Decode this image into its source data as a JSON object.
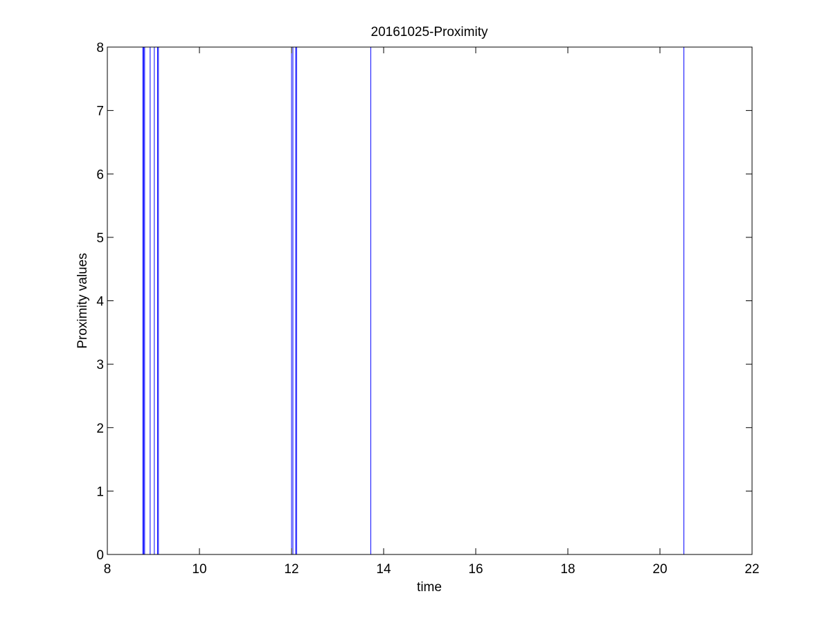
{
  "chart_data": {
    "type": "line",
    "title": "20161025-Proximity",
    "xlabel": "time",
    "ylabel": "Proximity values",
    "xlim": [
      8,
      22
    ],
    "ylim": [
      0,
      8
    ],
    "xticks": [
      "8",
      "10",
      "12",
      "14",
      "16",
      "18",
      "20",
      "22"
    ],
    "yticks": [
      "0",
      "1",
      "2",
      "3",
      "4",
      "5",
      "6",
      "7",
      "8"
    ],
    "grid": false,
    "legend": "none",
    "series": [
      {
        "color": "#0000ff",
        "segments": [
          {
            "x": [
              8.77,
              8.77
            ],
            "y": [
              0,
              8
            ]
          },
          {
            "x": [
              8.79,
              8.79
            ],
            "y": [
              0,
              8
            ]
          },
          {
            "x": [
              8.81,
              8.81
            ],
            "y": [
              0,
              8
            ]
          },
          {
            "x": [
              8.93,
              8.93
            ],
            "y": [
              0,
              8
            ]
          },
          {
            "x": [
              9.02,
              9.02
            ],
            "y": [
              0,
              8
            ]
          },
          {
            "x": [
              9.09,
              9.09
            ],
            "y": [
              0,
              8
            ]
          },
          {
            "x": [
              9.11,
              9.11
            ],
            "y": [
              0,
              8
            ]
          },
          {
            "x": [
              12.0,
              12.0
            ],
            "y": [
              0,
              8
            ]
          },
          {
            "x": [
              12.03,
              12.03
            ],
            "y": [
              0,
              8
            ]
          },
          {
            "x": [
              12.09,
              12.09
            ],
            "y": [
              0,
              8
            ]
          },
          {
            "x": [
              12.11,
              12.11
            ],
            "y": [
              0,
              8
            ]
          },
          {
            "x": [
              13.72,
              13.72
            ],
            "y": [
              0,
              8
            ]
          },
          {
            "x": [
              20.52,
              20.52
            ],
            "y": [
              0,
              8
            ]
          }
        ]
      }
    ]
  }
}
